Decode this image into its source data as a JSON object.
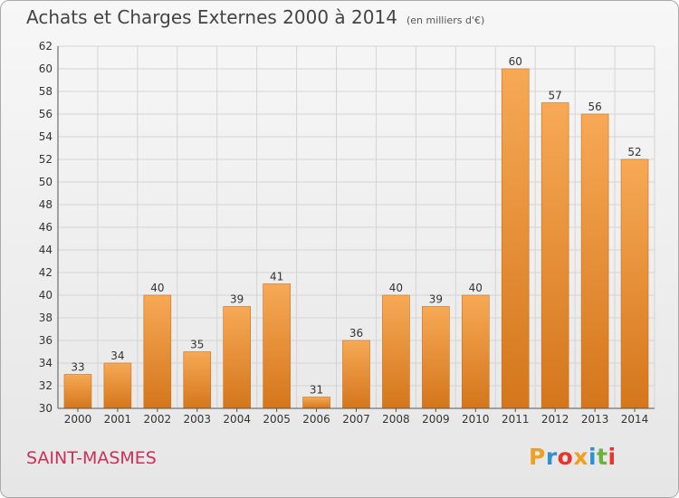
{
  "title": "Achats et Charges Externes 2000 à 2014",
  "unit": "(en milliers d'€)",
  "commune": "SAINT-MASMES",
  "logo": "Proxiti",
  "colors": {
    "bar_light": "#f7a955",
    "bar_dark": "#d4761c",
    "grid": "#d4d4d4",
    "commune": "#c8325a"
  },
  "chart_data": {
    "type": "bar",
    "categories": [
      "2000",
      "2001",
      "2002",
      "2003",
      "2004",
      "2005",
      "2006",
      "2007",
      "2008",
      "2009",
      "2010",
      "2011",
      "2012",
      "2013",
      "2014"
    ],
    "values": [
      33,
      34,
      40,
      35,
      39,
      41,
      31,
      36,
      40,
      39,
      40,
      60,
      57,
      56,
      52
    ],
    "ylim": [
      30,
      62
    ],
    "yticks": [
      30,
      32,
      34,
      36,
      38,
      40,
      42,
      44,
      46,
      48,
      50,
      52,
      54,
      56,
      58,
      60,
      62
    ],
    "grid": true,
    "data_labels": true
  }
}
